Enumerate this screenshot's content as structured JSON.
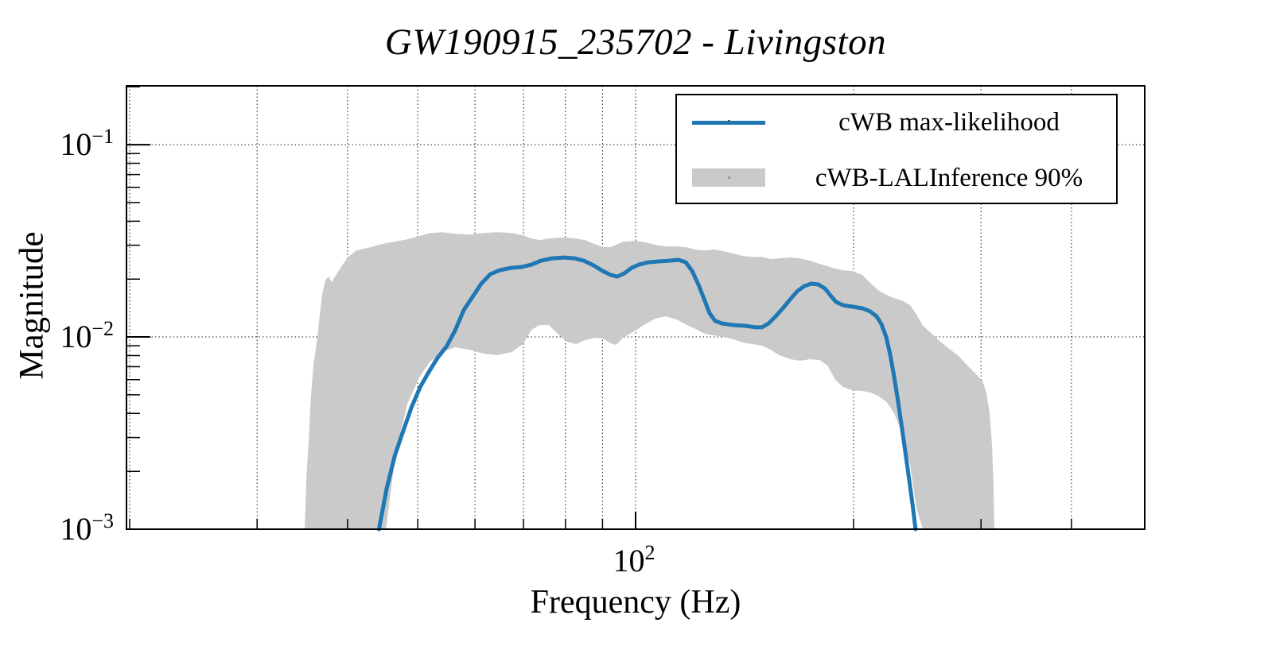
{
  "title": "GW190915_235702 - Livingston",
  "colors": {
    "line": "#1f77b4",
    "band": "#cacaca",
    "frame": "#000000",
    "grid": "#000000",
    "background": "#ffffff"
  },
  "legend": {
    "items": [
      {
        "label": "cWB max-likelihood",
        "type": "line"
      },
      {
        "label": "cWB-LALInference 90%",
        "type": "band"
      }
    ]
  },
  "chart_data": {
    "type": "line",
    "title": "GW190915_235702 - Livingston",
    "xlabel": "Frequency (Hz)",
    "ylabel": "Magnitude",
    "x_scale": "log",
    "y_scale": "log",
    "xlim": [
      19.8,
      505
    ],
    "ylim": [
      0.001,
      0.2024
    ],
    "grid": "dotted",
    "legend_position": "top-right",
    "x_ticks": [
      20,
      30,
      40,
      50,
      60,
      70,
      80,
      90,
      100,
      200,
      300,
      400
    ],
    "x_major_ticks": [
      100
    ],
    "x_tick_label": {
      "base": "10",
      "exp": "2"
    },
    "y_major_ticks": [
      0.1,
      0.01,
      0.001
    ],
    "y_gridlines": [
      0.1,
      0.01
    ],
    "y_tick_labels": [
      {
        "base": "10",
        "exp": "−1"
      },
      {
        "base": "10",
        "exp": "−2"
      },
      {
        "base": "10",
        "exp": "−3"
      }
    ],
    "series": [
      {
        "name": "cWB max-likelihood",
        "type": "line",
        "color": "#1f77b4",
        "points": [
          [
            44.2,
            0.001
          ],
          [
            45.3,
            0.00163
          ],
          [
            46.5,
            0.00242
          ],
          [
            47.6,
            0.00313
          ],
          [
            49.0,
            0.00429
          ],
          [
            50.4,
            0.00549
          ],
          [
            51.8,
            0.00658
          ],
          [
            53.3,
            0.00781
          ],
          [
            54.8,
            0.00892
          ],
          [
            56.3,
            0.01079
          ],
          [
            57.9,
            0.01382
          ],
          [
            59.5,
            0.0161
          ],
          [
            61.2,
            0.01892
          ],
          [
            63.0,
            0.02121
          ],
          [
            64.9,
            0.02224
          ],
          [
            67.2,
            0.02286
          ],
          [
            69.6,
            0.02311
          ],
          [
            71.8,
            0.02377
          ],
          [
            74.0,
            0.02493
          ],
          [
            76.7,
            0.02564
          ],
          [
            79.8,
            0.02588
          ],
          [
            82.3,
            0.02564
          ],
          [
            84.8,
            0.02493
          ],
          [
            87.5,
            0.02355
          ],
          [
            90.1,
            0.02203
          ],
          [
            92.4,
            0.021
          ],
          [
            94.3,
            0.02061
          ],
          [
            96.5,
            0.02143
          ],
          [
            98.7,
            0.02286
          ],
          [
            101.0,
            0.02377
          ],
          [
            104.1,
            0.02446
          ],
          [
            107.6,
            0.0247
          ],
          [
            111.2,
            0.02493
          ],
          [
            114.6,
            0.02517
          ],
          [
            117.3,
            0.02446
          ],
          [
            119.7,
            0.02203
          ],
          [
            122.1,
            0.01874
          ],
          [
            124.3,
            0.01579
          ],
          [
            126.5,
            0.01331
          ],
          [
            128.8,
            0.01211
          ],
          [
            131.7,
            0.01175
          ],
          [
            136.5,
            0.01153
          ],
          [
            141.4,
            0.01143
          ],
          [
            146.5,
            0.01122
          ],
          [
            149.5,
            0.01122
          ],
          [
            152.6,
            0.01175
          ],
          [
            156.1,
            0.0128
          ],
          [
            159.7,
            0.01409
          ],
          [
            163.4,
            0.01564
          ],
          [
            167.1,
            0.01722
          ],
          [
            171.0,
            0.0184
          ],
          [
            174.9,
            0.01892
          ],
          [
            178.9,
            0.01874
          ],
          [
            182.6,
            0.01786
          ],
          [
            185.9,
            0.01641
          ],
          [
            189.2,
            0.01521
          ],
          [
            193.5,
            0.01463
          ],
          [
            199.5,
            0.01436
          ],
          [
            205.7,
            0.01409
          ],
          [
            211.0,
            0.01355
          ],
          [
            215.2,
            0.0128
          ],
          [
            218.6,
            0.01164
          ],
          [
            221.9,
            0.01
          ],
          [
            224.7,
            0.00811
          ],
          [
            227.6,
            0.00621
          ],
          [
            230.4,
            0.00462
          ],
          [
            233.4,
            0.00332
          ],
          [
            236.3,
            0.00238
          ],
          [
            239.3,
            0.0017
          ],
          [
            241.8,
            0.00126
          ],
          [
            243.6,
            0.001
          ]
        ]
      },
      {
        "name": "cWB-LALInference 90%",
        "type": "band",
        "color": "#cacaca",
        "points_f_hi_lo": [
          [
            34.9,
            0.001,
            0.001
          ],
          [
            35.1,
            0.00187,
            0.001
          ],
          [
            35.4,
            0.00316,
            0.001
          ],
          [
            35.6,
            0.00485,
            0.001
          ],
          [
            35.9,
            0.00724,
            0.001
          ],
          [
            36.3,
            0.00962,
            0.001
          ],
          [
            36.6,
            0.0128,
            0.001
          ],
          [
            36.9,
            0.01671,
            0.001
          ],
          [
            37.3,
            0.01986,
            0.001
          ],
          [
            37.7,
            0.02061,
            0.001
          ],
          [
            38.0,
            0.01928,
            0.001
          ],
          [
            38.5,
            0.0208,
            0.001
          ],
          [
            39.3,
            0.02355,
            0.001
          ],
          [
            40.2,
            0.02636,
            0.001
          ],
          [
            41.1,
            0.02818,
            0.001
          ],
          [
            43.1,
            0.02931,
            0.001
          ],
          [
            44.2,
            0.03013,
            0.001
          ],
          [
            45.2,
            0.03076,
            0.001
          ],
          [
            46.6,
            0.03133,
            0.00249
          ],
          [
            48.4,
            0.03221,
            0.0045
          ],
          [
            50.3,
            0.0335,
            0.00621
          ],
          [
            52.0,
            0.03475,
            0.00745
          ],
          [
            54.1,
            0.03508,
            0.00834
          ],
          [
            56.3,
            0.03443,
            0.00883
          ],
          [
            58.9,
            0.03412,
            0.00859
          ],
          [
            61.6,
            0.03475,
            0.00819
          ],
          [
            64.4,
            0.03508,
            0.00804
          ],
          [
            67.4,
            0.03475,
            0.00834
          ],
          [
            69.9,
            0.03381,
            0.00918
          ],
          [
            71.8,
            0.03251,
            0.01089
          ],
          [
            73.7,
            0.03192,
            0.01153
          ],
          [
            75.9,
            0.03251,
            0.01153
          ],
          [
            78.3,
            0.03288,
            0.01028
          ],
          [
            80.4,
            0.03288,
            0.00944
          ],
          [
            82.8,
            0.03251,
            0.00918
          ],
          [
            85.1,
            0.03192,
            0.00962
          ],
          [
            87.8,
            0.03041,
            0.00991
          ],
          [
            90.2,
            0.02931,
            0.00982
          ],
          [
            92.3,
            0.02931,
            0.00927
          ],
          [
            94.0,
            0.03013,
            0.0091
          ],
          [
            96.2,
            0.03133,
            0.00991
          ],
          [
            100.3,
            0.03162,
            0.01089
          ],
          [
            103.4,
            0.03096,
            0.01175
          ],
          [
            106.5,
            0.03013,
            0.01245
          ],
          [
            110.1,
            0.02958,
            0.0128
          ],
          [
            113.8,
            0.02958,
            0.01233
          ],
          [
            117.3,
            0.02931,
            0.01164
          ],
          [
            121.0,
            0.02851,
            0.01099
          ],
          [
            124.6,
            0.02818,
            0.0104
          ],
          [
            128.4,
            0.02851,
            0.01019
          ],
          [
            132.3,
            0.02793,
            0.01
          ],
          [
            136.5,
            0.02716,
            0.00972
          ],
          [
            140.7,
            0.02636,
            0.00935
          ],
          [
            144.8,
            0.02612,
            0.00918
          ],
          [
            149.5,
            0.02612,
            0.00902
          ],
          [
            153.6,
            0.02541,
            0.00859
          ],
          [
            157.9,
            0.02564,
            0.00804
          ],
          [
            163.8,
            0.02588,
            0.00766
          ],
          [
            168.7,
            0.02564,
            0.00752
          ],
          [
            174.1,
            0.02493,
            0.00766
          ],
          [
            179.6,
            0.02399,
            0.00759
          ],
          [
            184.1,
            0.02333,
            0.0071
          ],
          [
            188.8,
            0.02265,
            0.00598
          ],
          [
            193.5,
            0.02224,
            0.00549
          ],
          [
            199.5,
            0.02203,
            0.00528
          ],
          [
            205.7,
            0.021,
            0.00524
          ],
          [
            211.0,
            0.0191,
            0.00514
          ],
          [
            216.2,
            0.01754,
            0.00494
          ],
          [
            221.9,
            0.01656,
            0.00462
          ],
          [
            227.6,
            0.01593,
            0.00401
          ],
          [
            233.4,
            0.01549,
            0.00316
          ],
          [
            239.4,
            0.01463,
            0.00216
          ],
          [
            244.4,
            0.01306,
            0.00128
          ],
          [
            249.4,
            0.01143,
            0.001
          ],
          [
            255.8,
            0.01049,
            0.001
          ],
          [
            262.2,
            0.00962,
            0.001
          ],
          [
            270.3,
            0.00875,
            0.001
          ],
          [
            278.6,
            0.00804,
            0.001
          ],
          [
            287.3,
            0.0071,
            0.001
          ],
          [
            296.1,
            0.00634,
            0.001
          ],
          [
            301.5,
            0.00587,
            0.001
          ],
          [
            305.3,
            0.00509,
            0.001
          ],
          [
            308.4,
            0.00401,
            0.001
          ],
          [
            310.7,
            0.00274,
            0.001
          ],
          [
            312.2,
            0.0017,
            0.001
          ],
          [
            313.0,
            0.001,
            0.001
          ]
        ]
      }
    ]
  }
}
